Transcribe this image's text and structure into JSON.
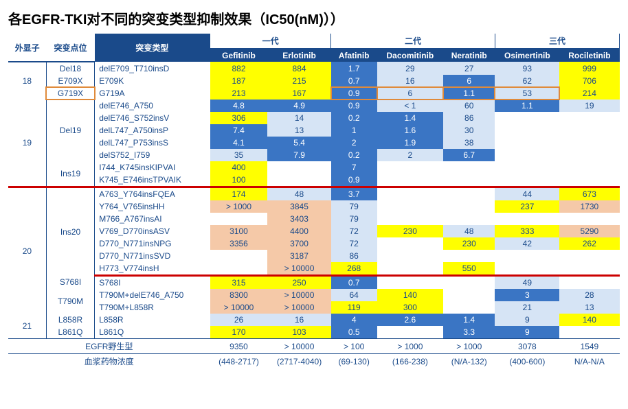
{
  "title": "各EGFR-TKI对不同的突变类型抑制效果（IC50(nM)））",
  "headers": {
    "exon": "外显子",
    "site": "突变点位",
    "type": "突变类型",
    "gen1": "一代",
    "gen2": "二代",
    "gen3": "三代",
    "drugs": [
      "Gefitinib",
      "Erlotinib",
      "Afatinib",
      "Dacomitinib",
      "Neratinib",
      "Osimertinib",
      "Rociletinib"
    ]
  },
  "footer": {
    "wt_label": "EGFR野生型",
    "wt": [
      "9350",
      "> 10000",
      "> 100",
      "> 1000",
      "> 1000",
      "3078",
      "1549"
    ],
    "plasma_label": "血浆药物浓度",
    "plasma": [
      "(448-2717)",
      "(2717-4040)",
      "(69-130)",
      "(166-238)",
      "(N/A-132)",
      "(400-600)",
      "N/A-N/A"
    ]
  },
  "groups": [
    {
      "exon": "18",
      "sites": [
        {
          "site": "Del18",
          "rows": [
            {
              "t": "delE709_T710insD",
              "v": [
                [
                  "882",
                  "y"
                ],
                [
                  "884",
                  "y"
                ],
                [
                  "1.7",
                  "b1"
                ],
                [
                  "29",
                  "b2"
                ],
                [
                  "27",
                  "b2"
                ],
                [
                  "93",
                  "b2"
                ],
                [
                  "999",
                  "y"
                ]
              ]
            }
          ]
        },
        {
          "site": "E709X",
          "rows": [
            {
              "t": "E709K",
              "v": [
                [
                  "187",
                  "y"
                ],
                [
                  "215",
                  "y"
                ],
                [
                  "0.7",
                  "b1"
                ],
                [
                  "16",
                  "b2"
                ],
                [
                  "6",
                  "b1"
                ],
                [
                  "62",
                  "b2"
                ],
                [
                  "706",
                  "y"
                ]
              ]
            }
          ]
        },
        {
          "site": "G719X",
          "orange": true,
          "rows": [
            {
              "t": "G719A",
              "orange": true,
              "v": [
                [
                  "213",
                  "y"
                ],
                [
                  "167",
                  "y"
                ],
                [
                  "0.9",
                  "b1"
                ],
                [
                  "6",
                  "b2"
                ],
                [
                  "1.1",
                  "b1"
                ],
                [
                  "53",
                  "b2"
                ],
                [
                  "214",
                  "y"
                ]
              ]
            }
          ]
        }
      ]
    },
    {
      "exon": "19",
      "sites": [
        {
          "site": "Del19",
          "rows": [
            {
              "t": "delE746_A750",
              "v": [
                [
                  "4.8",
                  "b1"
                ],
                [
                  "4.9",
                  "b1"
                ],
                [
                  "0.9",
                  "b1"
                ],
                [
                  "< 1",
                  "b2"
                ],
                [
                  "60",
                  "b2"
                ],
                [
                  "1.1",
                  "b1"
                ],
                [
                  "19",
                  "b2"
                ]
              ]
            },
            {
              "t": "delE746_S752insV",
              "v": [
                [
                  "306",
                  "y"
                ],
                [
                  "14",
                  "b2"
                ],
                [
                  "0.2",
                  "b1"
                ],
                [
                  "1.4",
                  "b1"
                ],
                [
                  "86",
                  "b2"
                ],
                [
                  "",
                  ""
                ],
                [
                  "",
                  ""
                ]
              ]
            },
            {
              "t": "delL747_A750insP",
              "v": [
                [
                  "7.4",
                  "b1"
                ],
                [
                  "13",
                  "b2"
                ],
                [
                  "1",
                  "b1"
                ],
                [
                  "1.6",
                  "b1"
                ],
                [
                  "30",
                  "b2"
                ],
                [
                  "",
                  ""
                ],
                [
                  "",
                  ""
                ]
              ]
            },
            {
              "t": "delL747_P753insS",
              "v": [
                [
                  "4.1",
                  "b1"
                ],
                [
                  "5.4",
                  "b1"
                ],
                [
                  "2",
                  "b1"
                ],
                [
                  "1.9",
                  "b1"
                ],
                [
                  "38",
                  "b2"
                ],
                [
                  "",
                  ""
                ],
                [
                  "",
                  ""
                ]
              ]
            },
            {
              "t": "delS752_I759",
              "v": [
                [
                  "35",
                  "b2"
                ],
                [
                  "7.9",
                  "b1"
                ],
                [
                  "0.2",
                  "b1"
                ],
                [
                  "2",
                  "b2"
                ],
                [
                  "6.7",
                  "b1"
                ],
                [
                  "",
                  ""
                ],
                [
                  "",
                  ""
                ]
              ]
            }
          ]
        },
        {
          "site": "Ins19",
          "rows": [
            {
              "t": "I744_K745insKIPVAI",
              "v": [
                [
                  "400",
                  "y"
                ],
                [
                  "",
                  ""
                ],
                [
                  "7",
                  "b1"
                ],
                [
                  "",
                  ""
                ],
                [
                  "",
                  ""
                ],
                [
                  "",
                  ""
                ],
                [
                  "",
                  ""
                ]
              ]
            },
            {
              "t": "K745_E746insTPVAIK",
              "v": [
                [
                  "100",
                  "y"
                ],
                [
                  "",
                  ""
                ],
                [
                  "0.9",
                  "b1"
                ],
                [
                  "",
                  ""
                ],
                [
                  "",
                  ""
                ],
                [
                  "",
                  ""
                ],
                [
                  "",
                  ""
                ]
              ]
            }
          ]
        }
      ]
    },
    {
      "exon": "20",
      "sites": [
        {
          "site": "Ins20",
          "redbox": true,
          "rows": [
            {
              "t": "A763_Y764insFQEA",
              "v": [
                [
                  "174",
                  "y"
                ],
                [
                  "48",
                  "b2"
                ],
                [
                  "3.7",
                  "b1"
                ],
                [
                  "",
                  ""
                ],
                [
                  "",
                  ""
                ],
                [
                  "44",
                  "b2"
                ],
                [
                  "673",
                  "y"
                ]
              ]
            },
            {
              "t": "Y764_V765insHH",
              "v": [
                [
                  "> 1000",
                  "p"
                ],
                [
                  "3845",
                  "p"
                ],
                [
                  "79",
                  "b2"
                ],
                [
                  "",
                  ""
                ],
                [
                  "",
                  ""
                ],
                [
                  "237",
                  "y"
                ],
                [
                  "1730",
                  "p"
                ]
              ]
            },
            {
              "t": "M766_A767insAI",
              "v": [
                [
                  "",
                  ""
                ],
                [
                  "3403",
                  "p"
                ],
                [
                  "79",
                  "b2"
                ],
                [
                  "",
                  ""
                ],
                [
                  "",
                  ""
                ],
                [
                  "",
                  ""
                ],
                [
                  "",
                  ""
                ]
              ]
            },
            {
              "t": "V769_D770insASV",
              "v": [
                [
                  "3100",
                  "p"
                ],
                [
                  "4400",
                  "p"
                ],
                [
                  "72",
                  "b2"
                ],
                [
                  "230",
                  "y"
                ],
                [
                  "48",
                  "b2"
                ],
                [
                  "333",
                  "y"
                ],
                [
                  "5290",
                  "p"
                ]
              ]
            },
            {
              "t": "D770_N771insNPG",
              "v": [
                [
                  "3356",
                  "p"
                ],
                [
                  "3700",
                  "p"
                ],
                [
                  "72",
                  "b2"
                ],
                [
                  "",
                  ""
                ],
                [
                  "230",
                  "y"
                ],
                [
                  "42",
                  "b2"
                ],
                [
                  "262",
                  "y"
                ]
              ]
            },
            {
              "t": "D770_N771insSVD",
              "v": [
                [
                  "",
                  ""
                ],
                [
                  "3187",
                  "p"
                ],
                [
                  "86",
                  "b2"
                ],
                [
                  "",
                  ""
                ],
                [
                  "",
                  ""
                ],
                [
                  "",
                  ""
                ],
                [
                  "",
                  ""
                ]
              ]
            },
            {
              "t": "H773_V774insH",
              "v": [
                [
                  "",
                  ""
                ],
                [
                  "> 10000",
                  "p"
                ],
                [
                  "268",
                  "y"
                ],
                [
                  "",
                  ""
                ],
                [
                  "550",
                  "y"
                ],
                [
                  "",
                  ""
                ],
                [
                  "",
                  ""
                ]
              ]
            }
          ]
        },
        {
          "site": "S768I",
          "rows": [
            {
              "t": "S768I",
              "v": [
                [
                  "315",
                  "y"
                ],
                [
                  "250",
                  "y"
                ],
                [
                  "0.7",
                  "b1"
                ],
                [
                  "",
                  ""
                ],
                [
                  "",
                  ""
                ],
                [
                  "49",
                  "b2"
                ],
                [
                  "",
                  ""
                ]
              ]
            }
          ]
        },
        {
          "site": "T790M",
          "rows": [
            {
              "t": "T790M+delE746_A750",
              "v": [
                [
                  "8300",
                  "p"
                ],
                [
                  "> 10000",
                  "p"
                ],
                [
                  "64",
                  "b2"
                ],
                [
                  "140",
                  "y"
                ],
                [
                  "",
                  ""
                ],
                [
                  "3",
                  "b1"
                ],
                [
                  "28",
                  "b2"
                ]
              ]
            },
            {
              "t": "T790M+L858R",
              "v": [
                [
                  "> 10000",
                  "p"
                ],
                [
                  "> 10000",
                  "p"
                ],
                [
                  "119",
                  "y"
                ],
                [
                  "300",
                  "y"
                ],
                [
                  "",
                  ""
                ],
                [
                  "21",
                  "b2"
                ],
                [
                  "13",
                  "b2"
                ]
              ]
            }
          ]
        }
      ]
    },
    {
      "exon": "21",
      "sites": [
        {
          "site": "L858R",
          "rows": [
            {
              "t": "L858R",
              "v": [
                [
                  "26",
                  "b2"
                ],
                [
                  "16",
                  "b2"
                ],
                [
                  "4",
                  "b1"
                ],
                [
                  "2.6",
                  "b1"
                ],
                [
                  "1.4",
                  "b1"
                ],
                [
                  "9",
                  "b2"
                ],
                [
                  "140",
                  "y"
                ]
              ]
            }
          ]
        },
        {
          "site": "L861Q",
          "rows": [
            {
              "t": "L861Q",
              "v": [
                [
                  "170",
                  "y"
                ],
                [
                  "103",
                  "y"
                ],
                [
                  "0.5",
                  "b1"
                ],
                [
                  "",
                  ""
                ],
                [
                  "3.3",
                  "b1"
                ],
                [
                  "9",
                  "b1"
                ],
                [
                  "",
                  ""
                ]
              ]
            }
          ]
        }
      ]
    }
  ],
  "colors": {
    "y": "#ffff00",
    "b1": "#3a75c4",
    "b2": "#d6e4f5",
    "p": "#f5c9a8",
    "hdr": "#1a4a8a"
  }
}
